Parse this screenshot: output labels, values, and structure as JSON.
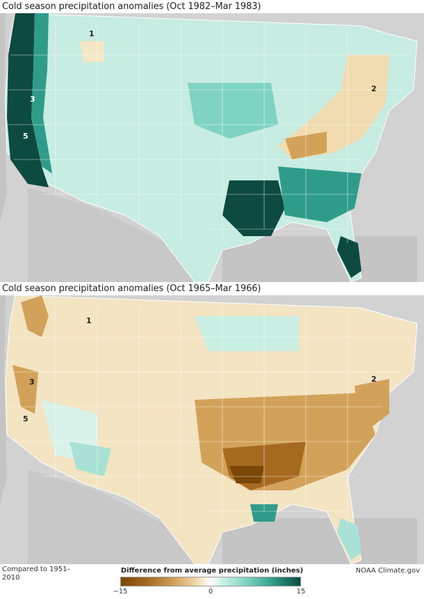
{
  "panels": [
    {
      "title": "Cold season precipitation anomalies (Oct 1982–Mar 1983)",
      "scenario": "wet",
      "region_labels": [
        "1",
        "2",
        "3",
        "5"
      ]
    },
    {
      "title": "Cold season precipitation anomalies (Oct 1965–Mar 1966)",
      "scenario": "dry",
      "region_labels": [
        "1",
        "2",
        "3",
        "5"
      ]
    }
  ],
  "legend": {
    "title": "Difference from average precipitation  (inches)",
    "ticks": [
      "−15",
      "0",
      "15"
    ],
    "colors": {
      "dry_extreme": "#7a4708",
      "neutral": "#ffffff",
      "wet_extreme": "#0d4a3f"
    }
  },
  "footer": {
    "baseline": "Compared to 1951–2010",
    "credit": "NOAA Climate.gov"
  }
}
